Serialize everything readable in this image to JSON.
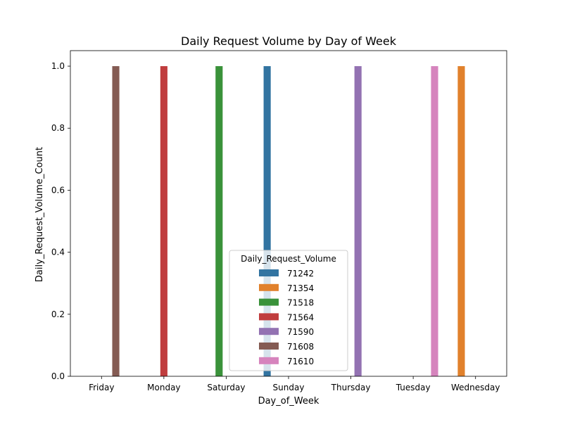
{
  "chart_data": {
    "type": "bar",
    "title": "Daily Request Volume by Day of Week",
    "xlabel": "Day_of_Week",
    "ylabel": "Daily_Request_Volume_Count",
    "categories": [
      "Friday",
      "Monday",
      "Saturday",
      "Sunday",
      "Thursday",
      "Tuesday",
      "Wednesday"
    ],
    "ylim": [
      0,
      1.05
    ],
    "yticks": [
      "0.0",
      "0.2",
      "0.4",
      "0.6",
      "0.8",
      "1.0"
    ],
    "grid": false,
    "legend": {
      "title": "Daily_Request_Volume",
      "placement": "lower-center"
    },
    "series": [
      {
        "name": "71242",
        "color": "#3274a1",
        "values": [
          0,
          0,
          0,
          1,
          0,
          0,
          0
        ]
      },
      {
        "name": "71354",
        "color": "#e1812c",
        "values": [
          0,
          0,
          0,
          0,
          0,
          0,
          1
        ]
      },
      {
        "name": "71518",
        "color": "#3a923a",
        "values": [
          0,
          0,
          1,
          0,
          0,
          0,
          0
        ]
      },
      {
        "name": "71564",
        "color": "#c03d3e",
        "values": [
          0,
          1,
          0,
          0,
          0,
          0,
          0
        ]
      },
      {
        "name": "71590",
        "color": "#9372b2",
        "values": [
          0,
          0,
          0,
          0,
          1,
          0,
          0
        ]
      },
      {
        "name": "71608",
        "color": "#845b53",
        "values": [
          1,
          0,
          0,
          0,
          0,
          0,
          0
        ]
      },
      {
        "name": "71610",
        "color": "#d684bd",
        "values": [
          0,
          0,
          0,
          0,
          0,
          1,
          0
        ]
      }
    ]
  }
}
